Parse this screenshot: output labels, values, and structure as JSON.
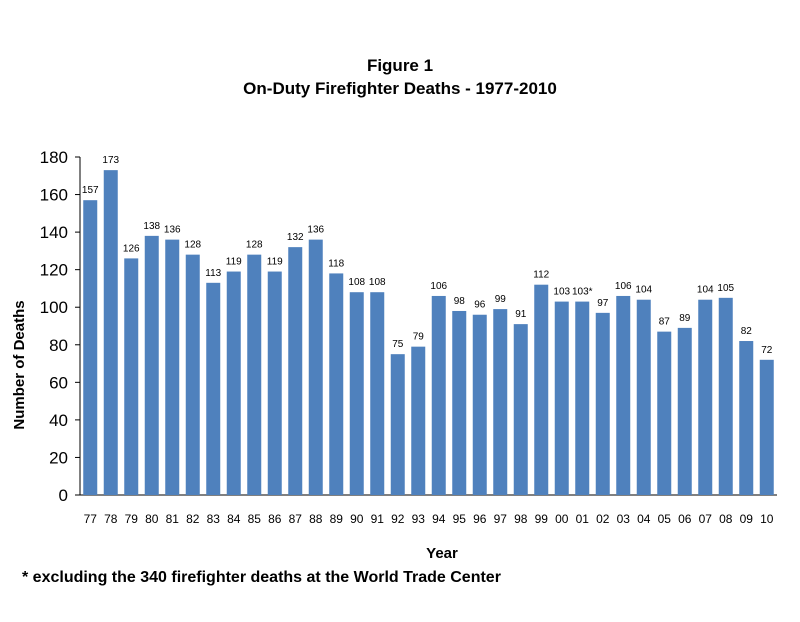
{
  "chart_data": {
    "type": "bar",
    "title": "Figure 1",
    "subtitle": "On-Duty Firefighter Deaths - 1977-2010",
    "xlabel": "Year",
    "ylabel": "Number of Deaths",
    "ylim": [
      0,
      180
    ],
    "yticks": [
      0,
      20,
      40,
      60,
      80,
      100,
      120,
      140,
      160,
      180
    ],
    "grid": false,
    "bar_color": "#4F81BD",
    "categories": [
      "77",
      "78",
      "79",
      "80",
      "81",
      "82",
      "83",
      "84",
      "85",
      "86",
      "87",
      "88",
      "89",
      "90",
      "91",
      "92",
      "93",
      "94",
      "95",
      "96",
      "97",
      "98",
      "99",
      "00",
      "01",
      "02",
      "03",
      "04",
      "05",
      "06",
      "07",
      "08",
      "09",
      "10"
    ],
    "values": [
      157,
      173,
      126,
      138,
      136,
      128,
      113,
      119,
      128,
      119,
      132,
      136,
      118,
      108,
      108,
      75,
      79,
      106,
      98,
      96,
      99,
      91,
      112,
      103,
      103,
      97,
      106,
      104,
      87,
      89,
      104,
      105,
      82,
      72
    ],
    "data_labels": [
      "157",
      "173",
      "126",
      "138",
      "136",
      "128",
      "113",
      "119",
      "128",
      "119",
      "132",
      "136",
      "118",
      "108",
      "108",
      "75",
      "79",
      "106",
      "98",
      "96",
      "99",
      "91",
      "112",
      "103",
      "103*",
      "97",
      "106",
      "104",
      "87",
      "89",
      "104",
      "105",
      "82",
      "72"
    ],
    "footnote": "*  excluding the 340 firefighter deaths at the World Trade Center"
  }
}
